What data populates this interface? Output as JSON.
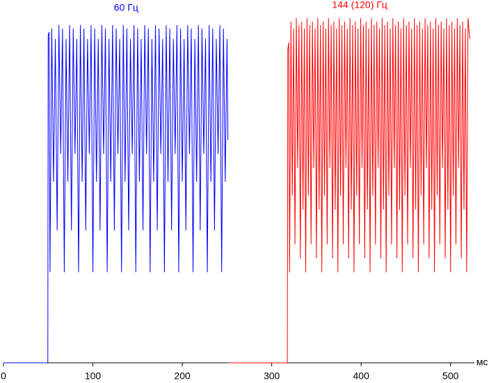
{
  "chart_data": {
    "type": "line",
    "xlabel": "мс",
    "xlim": [
      0,
      543
    ],
    "ylim": [
      0,
      100
    ],
    "xticks": [
      0,
      100,
      200,
      300,
      400,
      500
    ],
    "series": [
      {
        "name": "60 Гц",
        "color": "#0000ff",
        "x": [
          0,
          49.6,
          50,
          51,
          52,
          54,
          56,
          58,
          60,
          62,
          64,
          66,
          68,
          70,
          72,
          74,
          76,
          78,
          80,
          82,
          84,
          86,
          88,
          90,
          92,
          94,
          96,
          98,
          100,
          102,
          104,
          106,
          108,
          110,
          112,
          114,
          116,
          118,
          120,
          122,
          124,
          126,
          128,
          130,
          132,
          134,
          136,
          138,
          140,
          142,
          144,
          146,
          148,
          150,
          152,
          154,
          156,
          158,
          160,
          162,
          164,
          166,
          168,
          170,
          172,
          174,
          176,
          178,
          180,
          182,
          184,
          186,
          188,
          190,
          192,
          194,
          196,
          198,
          200,
          202,
          204,
          206,
          208,
          210,
          212,
          214,
          216,
          218,
          220,
          222,
          224,
          226,
          228,
          230,
          232,
          234,
          236,
          238,
          240,
          242,
          244,
          246,
          248,
          250,
          251
        ],
        "values": [
          0,
          0,
          94,
          95,
          26,
          96,
          52,
          93,
          38,
          97,
          60,
          96,
          26,
          93,
          52,
          97,
          38,
          96,
          60,
          93,
          26,
          97,
          52,
          96,
          38,
          93,
          60,
          97,
          26,
          96,
          52,
          93,
          38,
          97,
          60,
          96,
          26,
          93,
          52,
          97,
          38,
          96,
          60,
          93,
          26,
          97,
          52,
          96,
          38,
          93,
          60,
          97,
          26,
          96,
          52,
          93,
          38,
          97,
          60,
          96,
          26,
          93,
          52,
          97,
          38,
          96,
          60,
          93,
          26,
          97,
          52,
          96,
          38,
          93,
          60,
          97,
          26,
          96,
          52,
          93,
          38,
          97,
          60,
          96,
          26,
          93,
          52,
          97,
          38,
          96,
          60,
          93,
          26,
          97,
          52,
          96,
          38,
          93,
          60,
          97,
          26,
          96,
          52,
          93,
          64
        ]
      },
      {
        "name": "144 (120) Гц",
        "color": "#ff0000",
        "x": [
          252,
          317.5,
          318,
          319,
          320,
          321.5,
          323,
          324.5,
          326,
          327.5,
          329,
          330.5,
          332,
          333.5,
          335,
          336.5,
          338,
          339.5,
          341,
          342.5,
          344,
          345.5,
          347,
          348.5,
          350,
          351.5,
          353,
          354.5,
          356,
          357.5,
          359,
          360.5,
          362,
          363.5,
          365,
          366.5,
          368,
          369.5,
          371,
          372.5,
          374,
          375.5,
          377,
          378.5,
          380,
          381.5,
          383,
          384.5,
          386,
          387.5,
          389,
          390.5,
          392,
          393.5,
          395,
          396.5,
          398,
          399.5,
          401,
          402.5,
          404,
          405.5,
          407,
          408.5,
          410,
          411.5,
          413,
          414.5,
          416,
          417.5,
          419,
          420.5,
          422,
          423.5,
          425,
          426.5,
          428,
          429.5,
          431,
          432.5,
          434,
          435.5,
          437,
          438.5,
          440,
          441.5,
          443,
          444.5,
          446,
          447.5,
          449,
          450.5,
          452,
          453.5,
          455,
          456.5,
          458,
          459.5,
          461,
          462.5,
          464,
          465.5,
          467,
          468.5,
          470,
          471.5,
          473,
          474.5,
          476,
          477.5,
          479,
          480.5,
          482,
          483.5,
          485,
          486.5,
          488,
          489.5,
          491,
          492.5,
          494,
          495.5,
          497,
          498.5,
          500,
          501.5,
          503,
          504.5,
          506,
          507.5,
          509,
          510.5,
          512,
          513.5,
          515,
          516.5,
          518,
          519.5,
          521.5
        ],
        "values": [
          0,
          0,
          90,
          92,
          26,
          98,
          48,
          96,
          34,
          99,
          56,
          97,
          30,
          98,
          44,
          96,
          26,
          99,
          48,
          97,
          34,
          98,
          56,
          96,
          30,
          99,
          44,
          97,
          26,
          98,
          48,
          96,
          34,
          99,
          56,
          97,
          30,
          98,
          44,
          96,
          26,
          99,
          48,
          97,
          34,
          98,
          56,
          96,
          30,
          99,
          44,
          97,
          26,
          98,
          48,
          96,
          34,
          99,
          56,
          97,
          30,
          98,
          44,
          96,
          26,
          99,
          48,
          97,
          34,
          98,
          56,
          96,
          30,
          99,
          44,
          97,
          26,
          98,
          48,
          96,
          34,
          99,
          56,
          97,
          30,
          98,
          44,
          96,
          26,
          99,
          48,
          97,
          34,
          98,
          56,
          96,
          30,
          99,
          44,
          97,
          26,
          98,
          48,
          96,
          34,
          99,
          56,
          97,
          30,
          98,
          44,
          96,
          26,
          99,
          48,
          97,
          34,
          98,
          56,
          96,
          30,
          99,
          44,
          97,
          26,
          98,
          48,
          96,
          34,
          99,
          56,
          97,
          30,
          98,
          44,
          96,
          26,
          99,
          93
        ]
      }
    ]
  }
}
